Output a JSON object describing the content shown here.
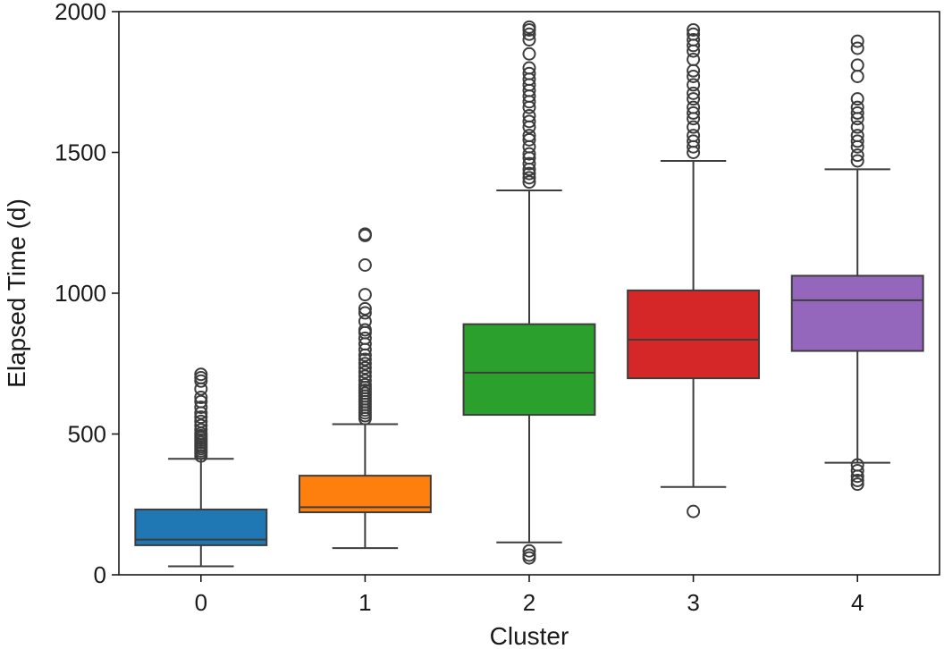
{
  "chart_data": {
    "type": "box",
    "title": "",
    "xlabel": "Cluster",
    "ylabel": "Elapsed Time (d)",
    "ylim": [
      0,
      2000
    ],
    "yticks": [
      0,
      500,
      1000,
      1500,
      2000
    ],
    "grid": false,
    "categories": [
      "0",
      "1",
      "2",
      "3",
      "4"
    ],
    "boxes": [
      {
        "category": "0",
        "color": "#1f77b4",
        "whisker_low": 30,
        "q1": 105,
        "median": 125,
        "q3": 232,
        "whisker_high": 412,
        "outliers": [
          422,
          432,
          440,
          448,
          455,
          462,
          470,
          478,
          486,
          494,
          502,
          515,
          530,
          545,
          560,
          575,
          595,
          615,
          630,
          660,
          688,
          700,
          712
        ]
      },
      {
        "category": "1",
        "color": "#ff7f0e",
        "whisker_low": 95,
        "q1": 222,
        "median": 240,
        "q3": 352,
        "whisker_high": 535,
        "outliers": [
          555,
          565,
          575,
          585,
          595,
          605,
          615,
          625,
          635,
          645,
          655,
          665,
          675,
          690,
          705,
          720,
          735,
          750,
          765,
          780,
          800,
          820,
          840,
          860,
          870,
          900,
          930,
          945,
          995,
          1100,
          1205,
          1210
        ]
      },
      {
        "category": "2",
        "color": "#2ca02c",
        "whisker_low": 115,
        "q1": 568,
        "median": 718,
        "q3": 890,
        "whisker_high": 1365,
        "outliers": [
          60,
          70,
          85,
          1395,
          1410,
          1425,
          1440,
          1460,
          1480,
          1495,
          1520,
          1545,
          1560,
          1590,
          1610,
          1630,
          1660,
          1680,
          1700,
          1720,
          1740,
          1760,
          1780,
          1800,
          1850,
          1900,
          1920,
          1935,
          1945
        ]
      },
      {
        "category": "3",
        "color": "#d62728",
        "whisker_low": 312,
        "q1": 698,
        "median": 835,
        "q3": 1010,
        "whisker_high": 1470,
        "outliers": [
          225,
          1500,
          1520,
          1540,
          1560,
          1590,
          1620,
          1640,
          1660,
          1690,
          1710,
          1740,
          1770,
          1790,
          1830,
          1860,
          1880,
          1900,
          1920,
          1935
        ]
      },
      {
        "category": "4",
        "color": "#9467bd",
        "whisker_low": 398,
        "q1": 795,
        "median": 975,
        "q3": 1062,
        "whisker_high": 1440,
        "outliers": [
          322,
          335,
          350,
          370,
          390,
          1470,
          1490,
          1520,
          1540,
          1560,
          1590,
          1620,
          1640,
          1660,
          1690,
          1770,
          1810,
          1870,
          1895
        ]
      }
    ]
  }
}
